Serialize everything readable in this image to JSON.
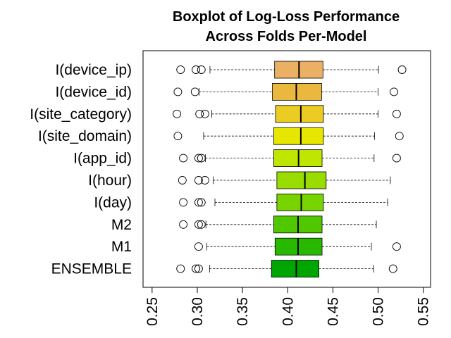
{
  "chart_data": {
    "type": "boxplot",
    "title": "Boxplot of Log-Loss Performance\nAcross Folds Per-Model",
    "title_lines": [
      "Boxplot of Log-Loss Performance",
      "Across Folds Per-Model"
    ],
    "xlabel": "",
    "ylabel": "",
    "xlim": [
      0.24,
      0.558
    ],
    "x_ticks": [
      0.25,
      0.3,
      0.35,
      0.4,
      0.45,
      0.5,
      0.55
    ],
    "x_tick_labels": [
      "0.25",
      "0.30",
      "0.35",
      "0.40",
      "0.45",
      "0.50",
      "0.55"
    ],
    "orientation": "horizontal",
    "grid": false,
    "legend": "none",
    "categories": [
      "I(device_ip)",
      "I(device_id)",
      "I(site_category)",
      "I(site_domain)",
      "I(app_id)",
      "I(hour)",
      "I(day)",
      "M2",
      "M1",
      "ENSEMBLE"
    ],
    "series": [
      {
        "name": "I(device_ip)",
        "whisker_low": 0.314,
        "q1": 0.3855,
        "median": 0.4125,
        "q3": 0.439,
        "whisker_high": 0.5005,
        "outliers": [
          0.2815,
          0.2985,
          0.3045,
          0.5265
        ],
        "color": "#ecb065"
      },
      {
        "name": "I(device_id)",
        "whisker_low": 0.302,
        "q1": 0.383,
        "median": 0.4095,
        "q3": 0.4375,
        "whisker_high": 0.5,
        "outliers": [
          0.2785,
          0.2975,
          0.5175
        ],
        "color": "#ebb83f"
      },
      {
        "name": "I(site_category)",
        "whisker_low": 0.316,
        "q1": 0.3865,
        "median": 0.4145,
        "q3": 0.4395,
        "whisker_high": 0.5,
        "outliers": [
          0.2775,
          0.3025,
          0.3085,
          0.5205
        ],
        "color": "#ebcc22"
      },
      {
        "name": "I(site_domain)",
        "whisker_low": 0.307,
        "q1": 0.3845,
        "median": 0.4145,
        "q3": 0.4395,
        "whisker_high": 0.496,
        "outliers": [
          0.2785,
          0.5235
        ],
        "color": "#e6e600"
      },
      {
        "name": "I(app_id)",
        "whisker_low": 0.309,
        "q1": 0.3845,
        "median": 0.412,
        "q3": 0.438,
        "whisker_high": 0.4955,
        "outliers": [
          0.2845,
          0.3015,
          0.3045,
          0.5205
        ],
        "color": "#bee600"
      },
      {
        "name": "I(hour)",
        "whisker_low": 0.3175,
        "q1": 0.388,
        "median": 0.419,
        "q3": 0.4425,
        "whisker_high": 0.5135,
        "outliers": [
          0.2835,
          0.3015,
          0.3085
        ],
        "color": "#99dd00"
      },
      {
        "name": "I(day)",
        "whisker_low": 0.3195,
        "q1": 0.388,
        "median": 0.415,
        "q3": 0.4395,
        "whisker_high": 0.5105,
        "outliers": [
          0.2845,
          0.3015,
          0.3045
        ],
        "color": "#77d400"
      },
      {
        "name": "M2",
        "whisker_low": 0.3095,
        "q1": 0.3845,
        "median": 0.4115,
        "q3": 0.438,
        "whisker_high": 0.498,
        "outliers": [
          0.2845,
          0.3015,
          0.3045
        ],
        "color": "#50c800"
      },
      {
        "name": "M1",
        "whisker_low": 0.3105,
        "q1": 0.386,
        "median": 0.4115,
        "q3": 0.438,
        "whisker_high": 0.4925,
        "outliers": [
          0.3015,
          0.5205
        ],
        "color": "#28b800"
      },
      {
        "name": "ENSEMBLE",
        "whisker_low": 0.3135,
        "q1": 0.382,
        "median": 0.4095,
        "q3": 0.4345,
        "whisker_high": 0.495,
        "outliers": [
          0.2815,
          0.2985,
          0.3015,
          0.5165
        ],
        "color": "#00a600"
      }
    ]
  }
}
